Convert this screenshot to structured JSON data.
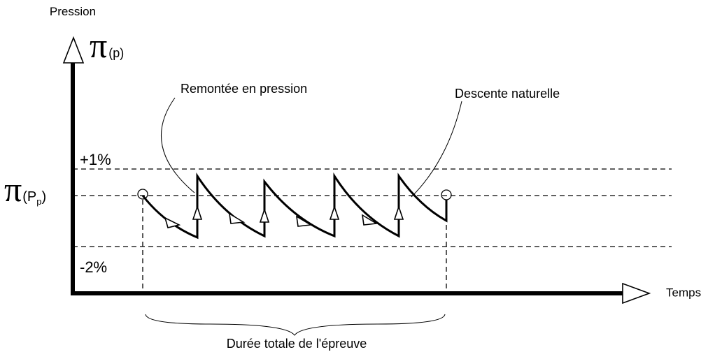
{
  "axes": {
    "y_label": "Pression",
    "x_label": "Temps"
  },
  "symbols": {
    "pi_p": {
      "symbol": "π",
      "subscript": "(p)"
    },
    "pi_Pp": {
      "symbol": "π",
      "open": "(P",
      "index": "p",
      "close": ")"
    }
  },
  "levels": {
    "upper": "+1%",
    "lower": "-2%"
  },
  "annotations": {
    "rise": "Remontée en pression",
    "fall": "Descente naturelle"
  },
  "duration": "Durée totale de l'épreuve"
}
